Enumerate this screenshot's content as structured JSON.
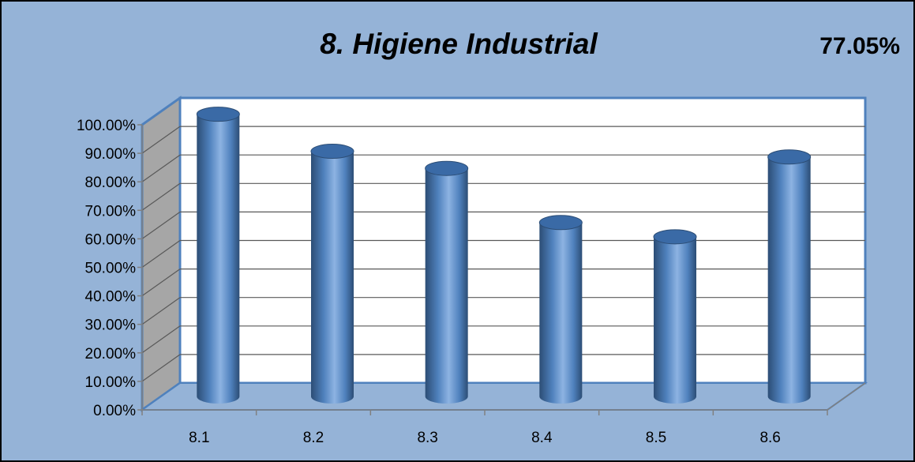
{
  "chart_data": {
    "type": "bar",
    "style": "3d-cylinder",
    "title": "8. Higiene Industrial",
    "score": "77.05%",
    "categories": [
      "8.1",
      "8.2",
      "8.3",
      "8.4",
      "8.5",
      "8.6"
    ],
    "values": [
      0.99,
      0.86,
      0.8,
      0.61,
      0.56,
      0.84
    ],
    "yticks": [
      "0.00%",
      "10.00%",
      "20.00%",
      "30.00%",
      "40.00%",
      "50.00%",
      "60.00%",
      "70.00%",
      "80.00%",
      "90.00%",
      "100.00%"
    ],
    "ylim": [
      0,
      1
    ],
    "xlabel": "",
    "ylabel": "",
    "grid": true,
    "legend": "none",
    "colors": {
      "background": "#95b3d7",
      "plot_back_wall": "#ffffff",
      "side_wall": "#a6a6a6",
      "floor": "#95b3d7",
      "wall_border": "#4f81bd",
      "gridline": "#595959",
      "bar_fill": "#4f81bd",
      "bar_dark": "#2c4d75",
      "bar_light": "#8db3e2"
    }
  }
}
